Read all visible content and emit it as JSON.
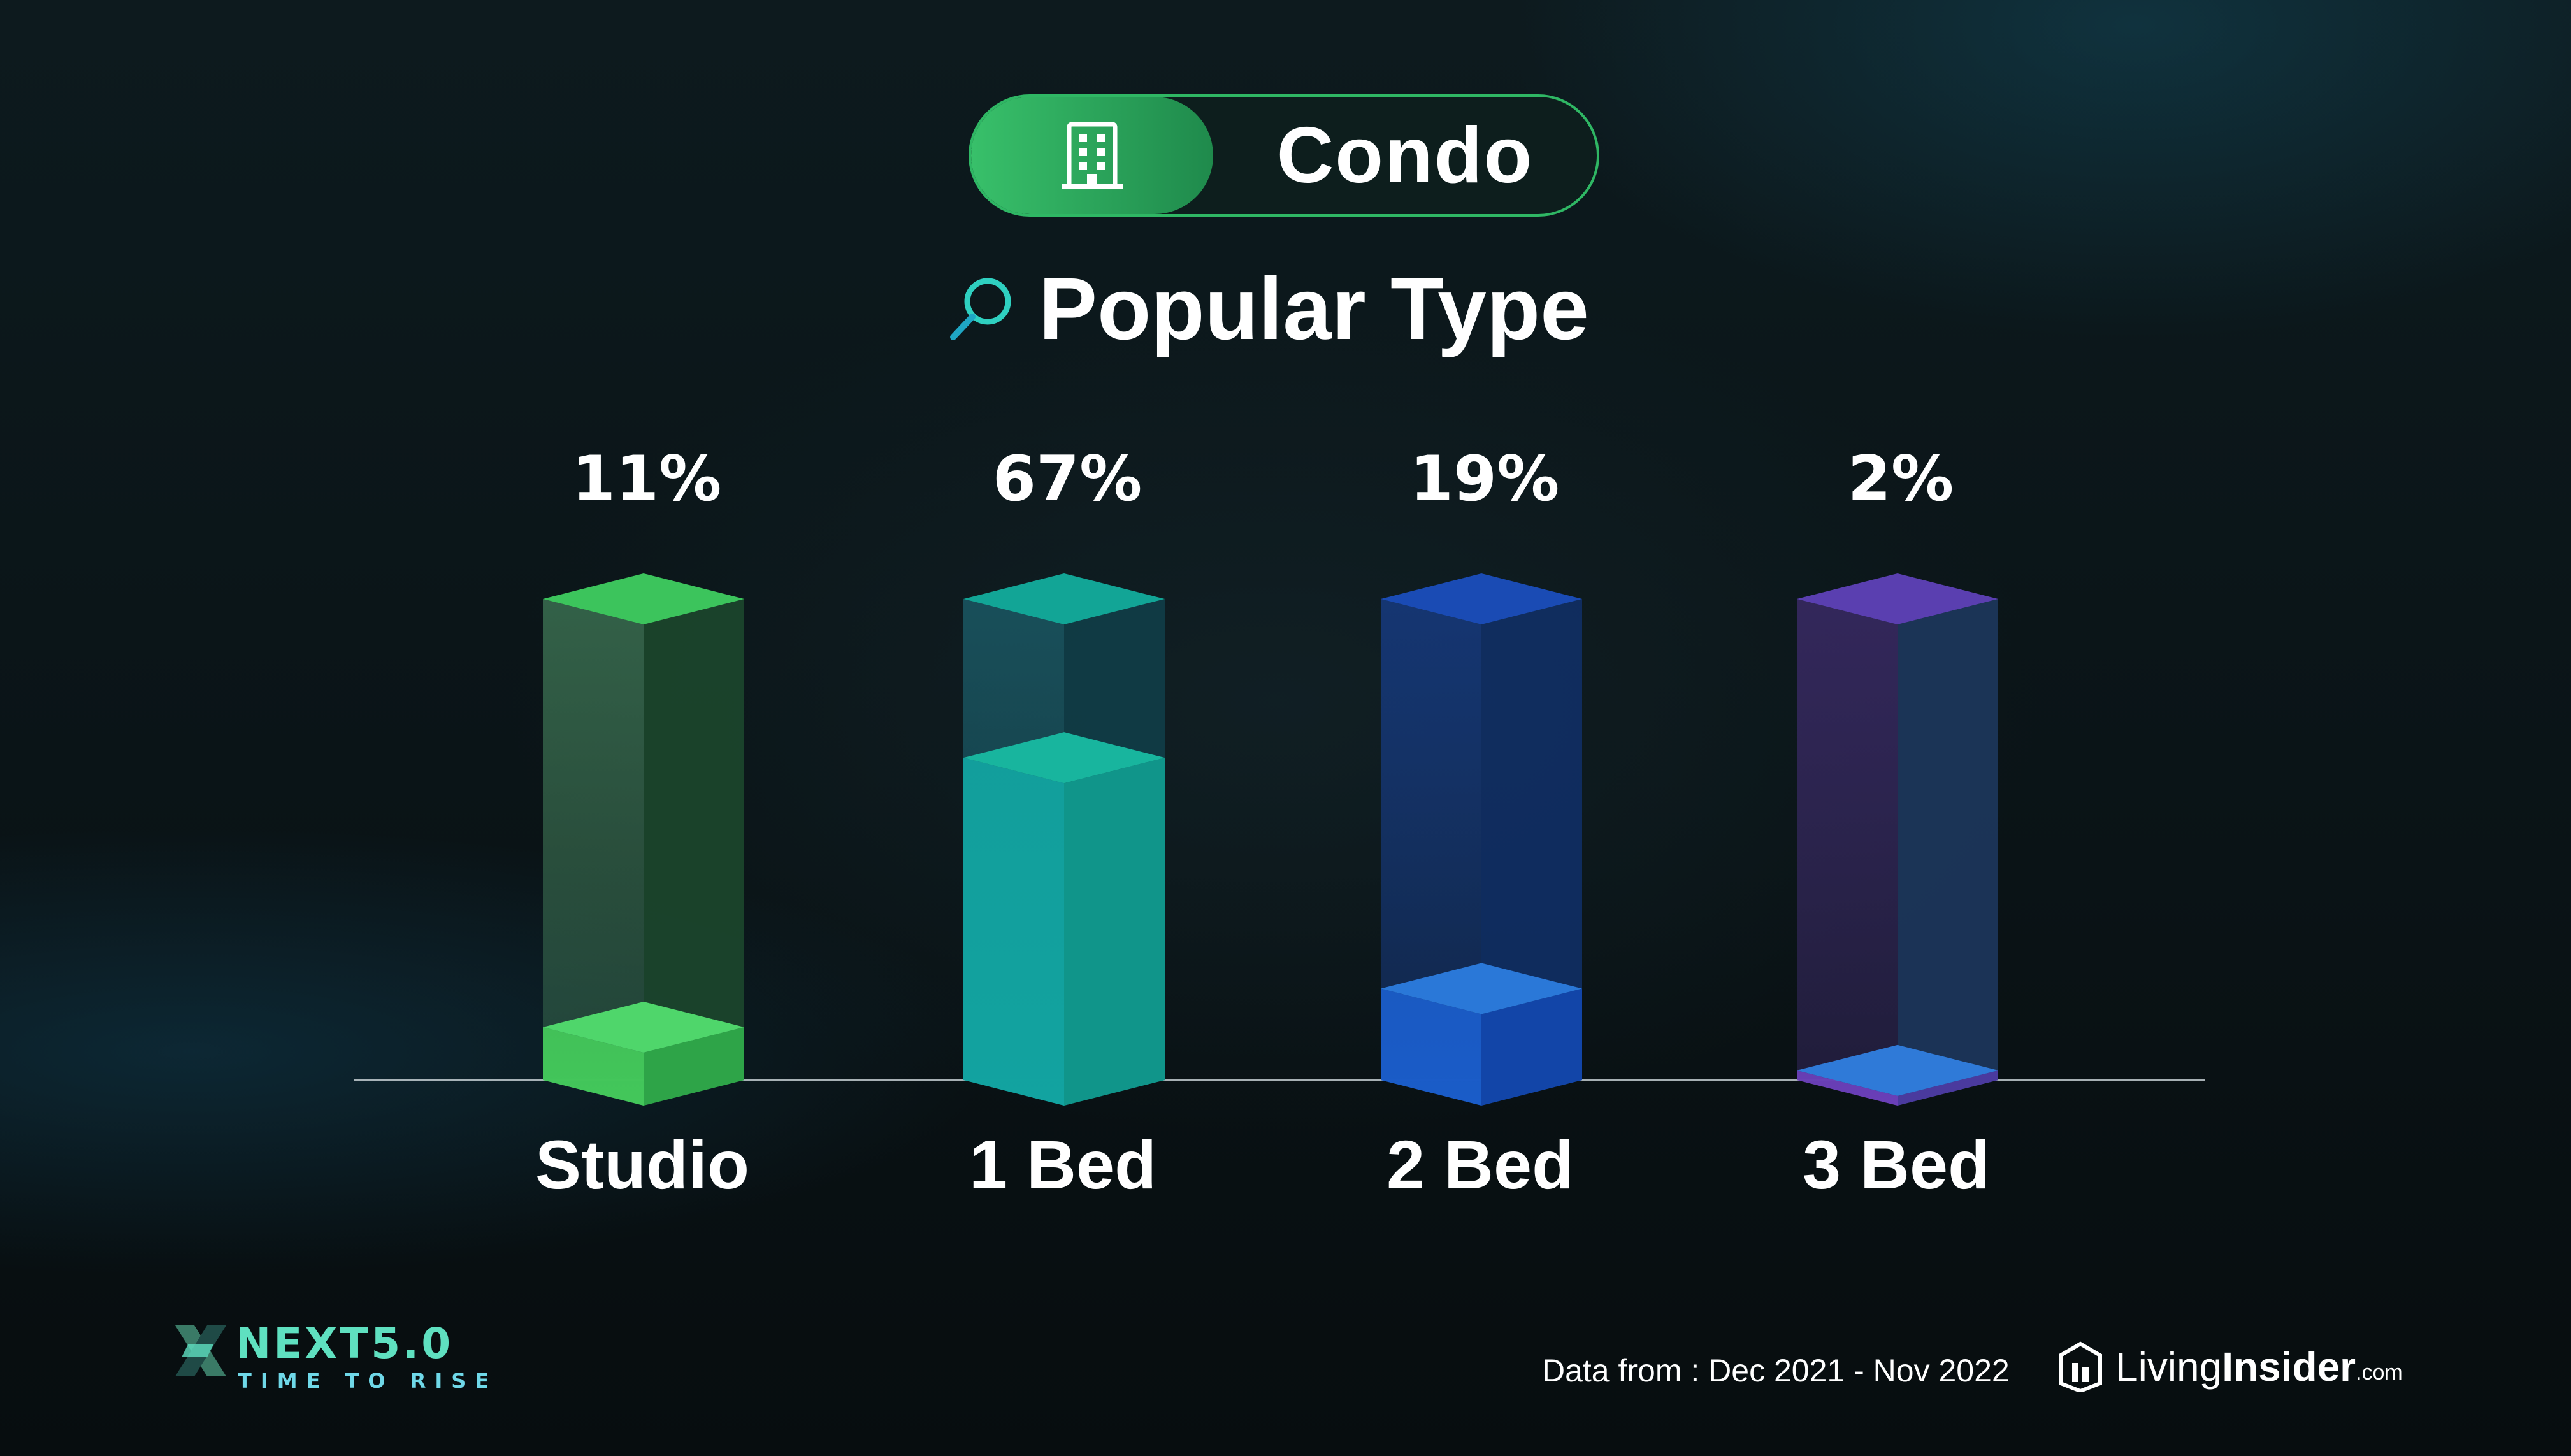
{
  "header": {
    "category_label": "Condo",
    "category_icon": "building-icon",
    "title": "Popular Type",
    "title_icon": "search-icon"
  },
  "chart_data": {
    "type": "bar",
    "categories": [
      "Studio",
      "1 Bed",
      "2 Bed",
      "3 Bed"
    ],
    "values": [
      11,
      67,
      19,
      2
    ],
    "value_labels": [
      "11%",
      "67%",
      "19%",
      "2%"
    ],
    "unit": "%",
    "ylim": [
      0,
      100
    ],
    "grid": false,
    "style": "3d-glass-columns",
    "colors": [
      "#3cc45c",
      "#14a99a",
      "#1a56c8",
      "#6a3fb8"
    ]
  },
  "footer": {
    "brand_name": "NEXT5.0",
    "brand_tagline": "TIME TO RISE",
    "source_note": "Data from : Dec 2021 - Nov 2022",
    "logo_living": "Living",
    "logo_insider": "Insider",
    "logo_dotcom": ".com",
    "logo_icon": "house-icon"
  }
}
